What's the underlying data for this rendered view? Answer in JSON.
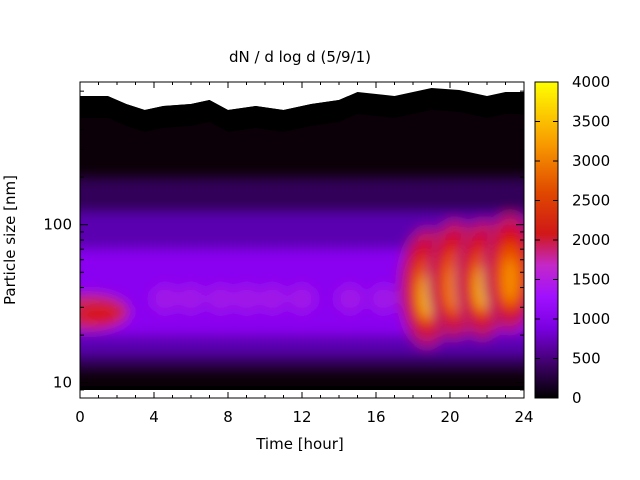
{
  "chart_data": {
    "type": "heatmap",
    "title": "dN / d log d (5/9/1)",
    "xlabel": "Time [hour]",
    "ylabel": "Particle size [nm]",
    "x_ticks": [
      0,
      4,
      8,
      12,
      16,
      20,
      24
    ],
    "xlim": [
      0,
      24
    ],
    "y_scale": "log",
    "ylim": [
      8,
      800
    ],
    "y_ticks": [
      10,
      100
    ],
    "colorbar": {
      "range": [
        0,
        4000
      ],
      "ticks": [
        0,
        500,
        1000,
        1500,
        2000,
        2500,
        3000,
        3500,
        4000
      ],
      "colormap": [
        "#000000",
        "#5a00a8",
        "#9a00ff",
        "#c830c0",
        "#d01818",
        "#e85000",
        "#f8a000",
        "#ffff00"
      ]
    },
    "features": [
      {
        "t_start": 0,
        "t_end": 18,
        "peak_size_nm": 30,
        "level": 1500
      },
      {
        "t_start": 18,
        "t_end": 19.5,
        "peak_size_nm": 40,
        "level": 3400
      },
      {
        "t_start": 19.5,
        "t_end": 21,
        "peak_size_nm": 45,
        "level": 2900
      },
      {
        "t_start": 21,
        "t_end": 22.5,
        "peak_size_nm": 45,
        "level": 3100
      },
      {
        "t_start": 22.5,
        "t_end": 24,
        "peak_size_nm": 50,
        "level": 2600
      }
    ],
    "grid": false,
    "legend": "colorbar-right"
  }
}
